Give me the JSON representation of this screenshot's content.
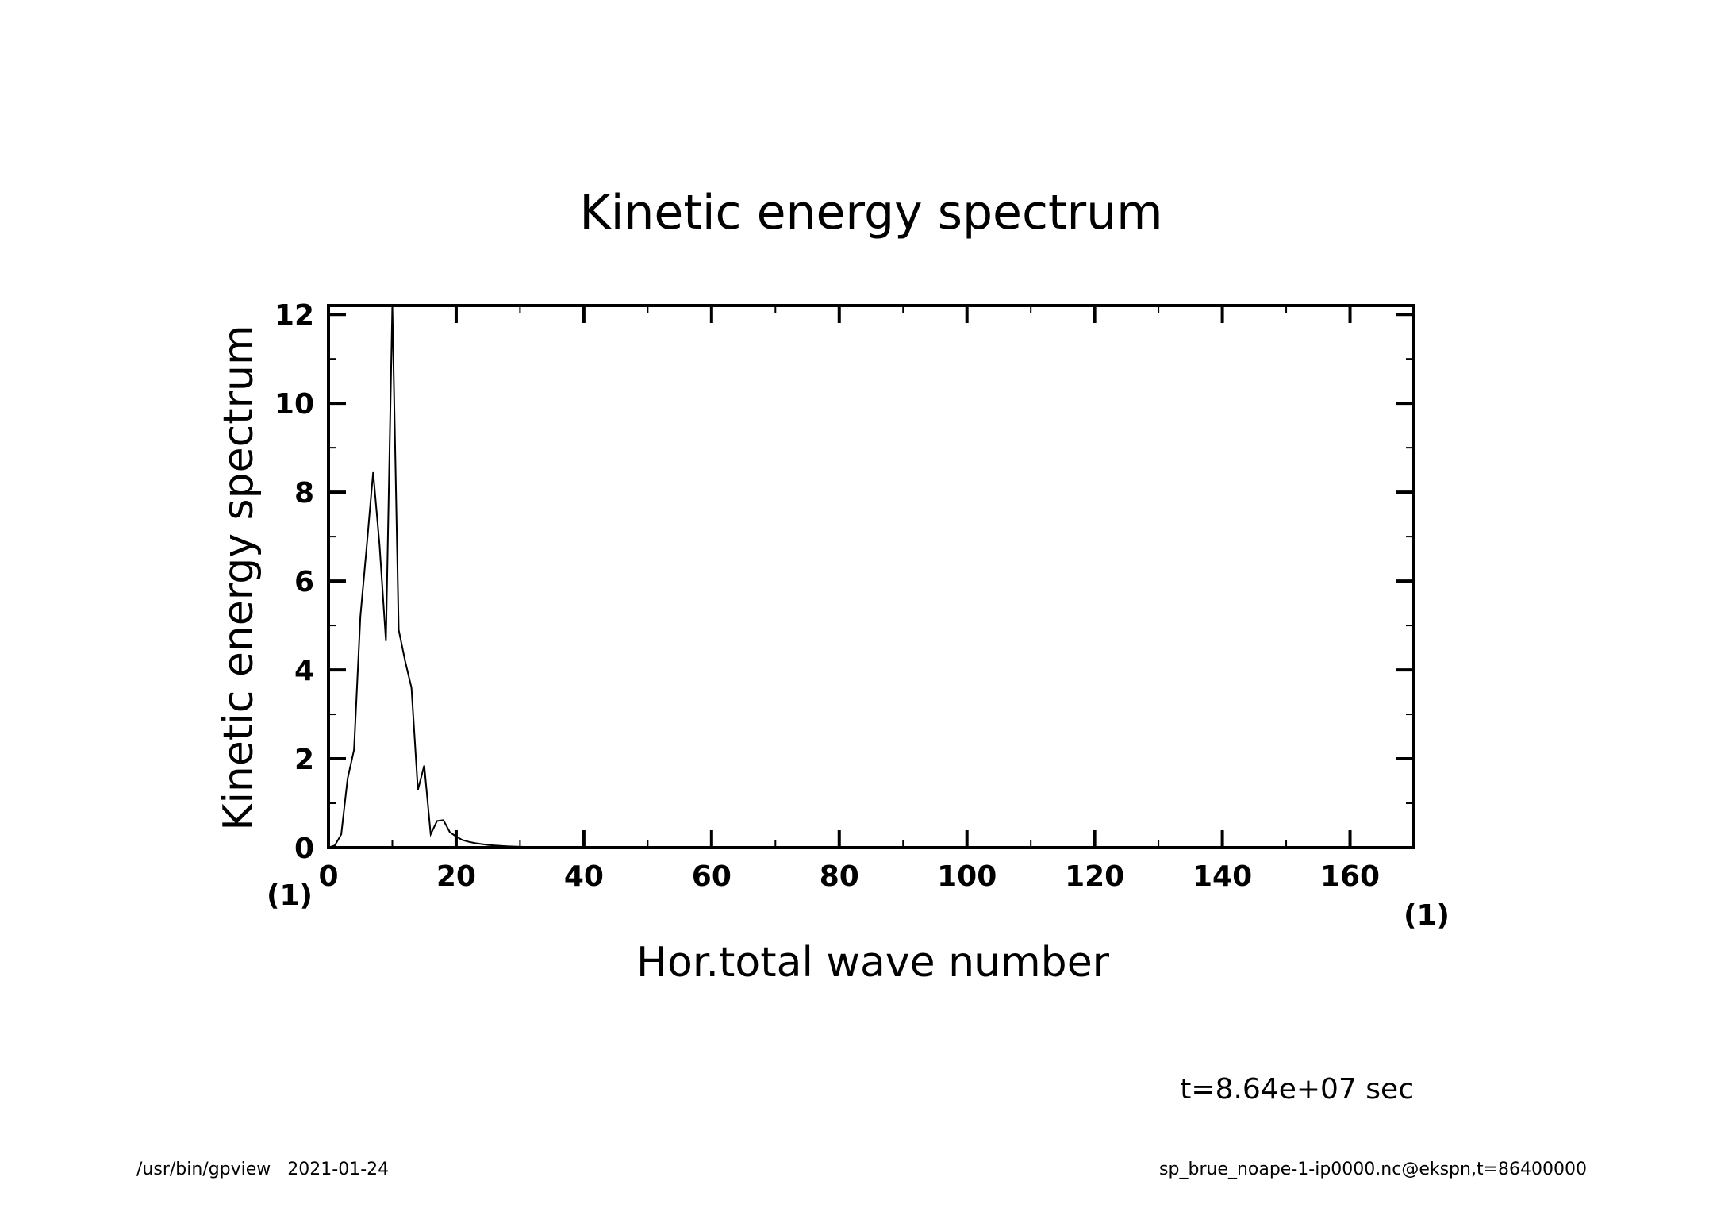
{
  "chart_data": {
    "type": "line",
    "title": "Kinetic energy spectrum",
    "xlabel": "Hor.total wave number",
    "ylabel": "Kinetic energy spectrum",
    "x_unit": "(1)",
    "y_unit": "(1)",
    "xlim": [
      0,
      170
    ],
    "ylim": [
      0,
      12.2
    ],
    "x_ticks": [
      0,
      20,
      40,
      60,
      80,
      100,
      120,
      140,
      160
    ],
    "y_ticks": [
      0,
      2,
      4,
      6,
      8,
      10,
      12
    ],
    "x_minor_step": 10,
    "y_minor_step": 1,
    "grid": false,
    "series": [
      {
        "x": [
          0,
          1,
          2,
          3,
          4,
          5,
          6,
          7,
          8,
          9,
          10,
          11,
          12,
          13,
          14,
          15,
          16,
          17,
          18,
          19,
          20,
          21,
          22,
          23,
          24,
          25,
          26,
          27,
          28,
          29,
          30,
          32,
          34,
          36,
          40,
          45,
          50,
          60,
          70,
          80,
          100,
          120,
          140,
          160,
          170
        ],
        "y": [
          0,
          0.05,
          0.3,
          1.55,
          2.2,
          5.2,
          6.8,
          8.45,
          6.8,
          4.65,
          12.2,
          4.9,
          4.2,
          3.6,
          1.3,
          1.85,
          0.3,
          0.6,
          0.62,
          0.35,
          0.25,
          0.17,
          0.13,
          0.1,
          0.08,
          0.06,
          0.05,
          0.04,
          0.03,
          0.025,
          0.02,
          0.015,
          0.01,
          0.008,
          0.005,
          0.003,
          0.002,
          0.001,
          0,
          0,
          0,
          0,
          0,
          0,
          0
        ]
      }
    ]
  },
  "annotations": {
    "time": "t=8.64e+07 sec"
  },
  "footer": {
    "left": "/usr/bin/gpview   2021-01-24",
    "right": "sp_brue_noape-1-ip0000.nc@ekspn,t=86400000"
  }
}
